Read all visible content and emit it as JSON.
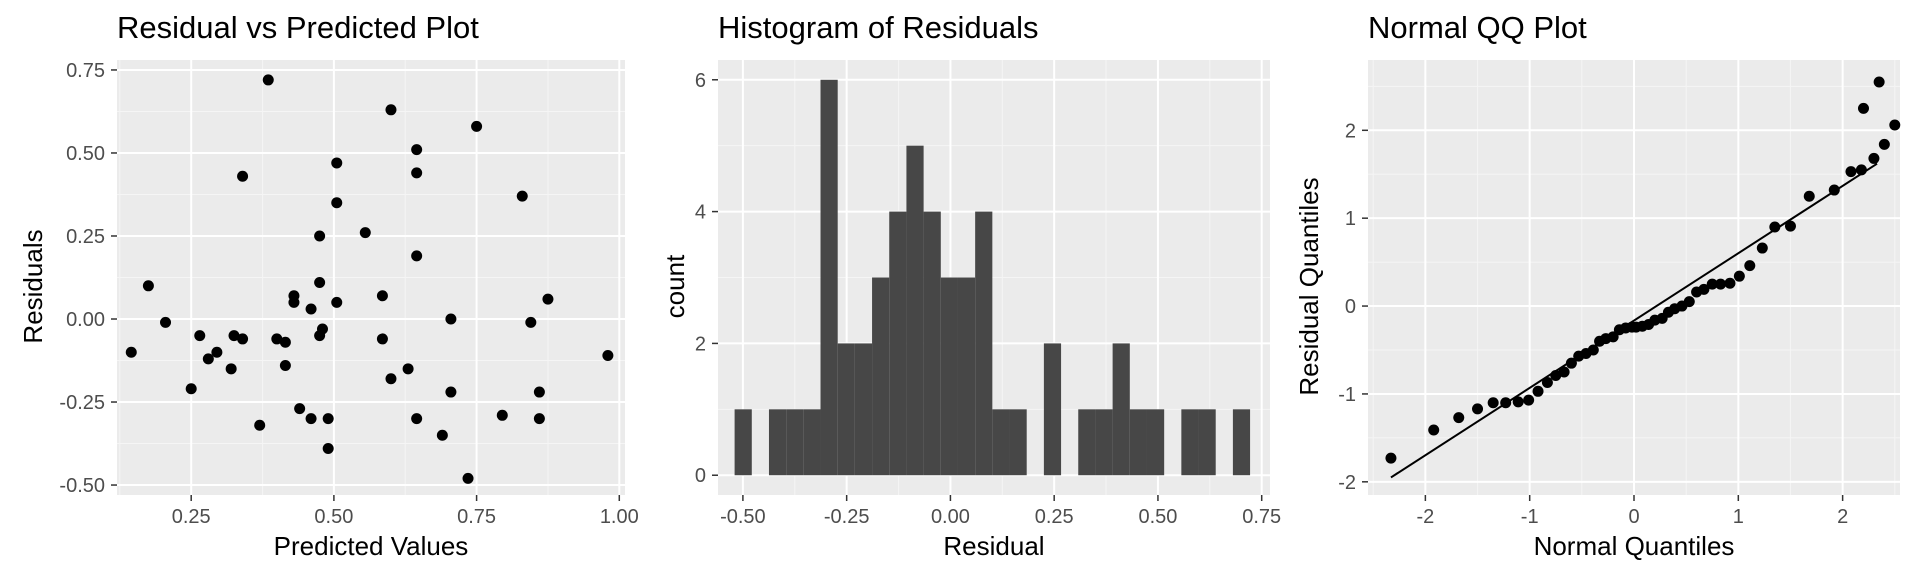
{
  "chart_data": [
    {
      "type": "scatter",
      "title": "Residual vs Predicted Plot",
      "xlabel": "Predicted Values",
      "ylabel": "Residuals",
      "xlim": [
        0.12,
        1.01
      ],
      "ylim": [
        -0.53,
        0.78
      ],
      "xticks": [
        0.25,
        0.5,
        0.75,
        1.0
      ],
      "xtick_labels": [
        "0.25",
        "0.50",
        "0.75",
        "1.00"
      ],
      "yticks": [
        -0.5,
        -0.25,
        0.0,
        0.25,
        0.5,
        0.75
      ],
      "ytick_labels": [
        "-0.50",
        "-0.25",
        "0.00",
        "0.25",
        "0.50",
        "0.75"
      ],
      "grid": true,
      "points": [
        [
          0.145,
          -0.1
        ],
        [
          0.175,
          0.1
        ],
        [
          0.205,
          -0.01
        ],
        [
          0.25,
          -0.21
        ],
        [
          0.265,
          -0.05
        ],
        [
          0.28,
          -0.12
        ],
        [
          0.295,
          -0.1
        ],
        [
          0.32,
          -0.15
        ],
        [
          0.325,
          -0.05
        ],
        [
          0.34,
          -0.06
        ],
        [
          0.34,
          0.43
        ],
        [
          0.37,
          -0.32
        ],
        [
          0.385,
          0.72
        ],
        [
          0.4,
          -0.06
        ],
        [
          0.415,
          -0.07
        ],
        [
          0.415,
          -0.14
        ],
        [
          0.43,
          0.07
        ],
        [
          0.43,
          0.05
        ],
        [
          0.44,
          -0.27
        ],
        [
          0.46,
          0.03
        ],
        [
          0.46,
          -0.3
        ],
        [
          0.475,
          0.25
        ],
        [
          0.475,
          0.11
        ],
        [
          0.475,
          -0.05
        ],
        [
          0.48,
          -0.03
        ],
        [
          0.49,
          -0.3
        ],
        [
          0.49,
          -0.39
        ],
        [
          0.505,
          0.47
        ],
        [
          0.505,
          0.35
        ],
        [
          0.505,
          0.05
        ],
        [
          0.555,
          0.26
        ],
        [
          0.585,
          0.07
        ],
        [
          0.585,
          -0.06
        ],
        [
          0.6,
          0.63
        ],
        [
          0.6,
          -0.18
        ],
        [
          0.63,
          -0.15
        ],
        [
          0.645,
          0.51
        ],
        [
          0.645,
          0.44
        ],
        [
          0.645,
          0.19
        ],
        [
          0.645,
          -0.3
        ],
        [
          0.69,
          -0.35
        ],
        [
          0.705,
          0.0
        ],
        [
          0.705,
          -0.22
        ],
        [
          0.735,
          -0.48
        ],
        [
          0.75,
          0.58
        ],
        [
          0.795,
          -0.29
        ],
        [
          0.83,
          0.37
        ],
        [
          0.845,
          -0.01
        ],
        [
          0.86,
          -0.22
        ],
        [
          0.86,
          -0.3
        ],
        [
          0.875,
          0.06
        ],
        [
          0.98,
          -0.11
        ]
      ]
    },
    {
      "type": "bar",
      "title": "Histogram of Residuals",
      "xlabel": "Residual",
      "ylabel": "count",
      "xlim": [
        -0.56,
        0.77
      ],
      "ylim": [
        -0.3,
        6.3
      ],
      "xticks": [
        -0.5,
        -0.25,
        0.0,
        0.25,
        0.5,
        0.75
      ],
      "xtick_labels": [
        "-0.50",
        "-0.25",
        "0.00",
        "0.25",
        "0.50",
        "0.75"
      ],
      "yticks": [
        0,
        2,
        4,
        6
      ],
      "ytick_labels": [
        "0",
        "2",
        "4",
        "6"
      ],
      "grid": true,
      "bins": 30,
      "bin_start": -0.52,
      "bin_width": 0.0414,
      "values": [
        1,
        0,
        1,
        1,
        1,
        6,
        2,
        2,
        3,
        4,
        5,
        4,
        3,
        3,
        4,
        1,
        1,
        0,
        2,
        0,
        1,
        1,
        2,
        1,
        1,
        0,
        1,
        1,
        0,
        1
      ]
    },
    {
      "type": "scatter",
      "title": "Normal QQ Plot",
      "xlabel": "Normal Quantiles",
      "ylabel": "Residual Quantiles",
      "xlim": [
        -2.55,
        2.55
      ],
      "ylim": [
        -2.15,
        2.8
      ],
      "xticks": [
        -2,
        -1,
        0,
        1,
        2
      ],
      "xtick_labels": [
        "-2",
        "-1",
        "0",
        "1",
        "2"
      ],
      "yticks": [
        -2,
        -1,
        0,
        1,
        2
      ],
      "ytick_labels": [
        "-2",
        "-1",
        "0",
        "1",
        "2"
      ],
      "grid": true,
      "reference_line": [
        [
          -2.33,
          -1.95
        ],
        [
          2.33,
          1.62
        ]
      ],
      "points": [
        [
          -2.33,
          -1.73
        ],
        [
          -1.92,
          -1.41
        ],
        [
          -1.68,
          -1.27
        ],
        [
          -1.5,
          -1.17
        ],
        [
          -1.35,
          -1.1
        ],
        [
          -1.23,
          -1.1
        ],
        [
          -1.11,
          -1.09
        ],
        [
          -1.01,
          -1.07
        ],
        [
          -0.92,
          -0.97
        ],
        [
          -0.83,
          -0.87
        ],
        [
          -0.75,
          -0.79
        ],
        [
          -0.67,
          -0.75
        ],
        [
          -0.6,
          -0.65
        ],
        [
          -0.53,
          -0.57
        ],
        [
          -0.46,
          -0.54
        ],
        [
          -0.39,
          -0.5
        ],
        [
          -0.33,
          -0.4
        ],
        [
          -0.27,
          -0.37
        ],
        [
          -0.2,
          -0.35
        ],
        [
          -0.14,
          -0.27
        ],
        [
          -0.08,
          -0.25
        ],
        [
          -0.02,
          -0.24
        ],
        [
          0.02,
          -0.24
        ],
        [
          0.08,
          -0.23
        ],
        [
          0.14,
          -0.21
        ],
        [
          0.2,
          -0.16
        ],
        [
          0.27,
          -0.14
        ],
        [
          0.33,
          -0.07
        ],
        [
          0.39,
          -0.03
        ],
        [
          0.46,
          0.0
        ],
        [
          0.53,
          0.05
        ],
        [
          0.6,
          0.16
        ],
        [
          0.67,
          0.19
        ],
        [
          0.75,
          0.25
        ],
        [
          0.83,
          0.25
        ],
        [
          0.92,
          0.26
        ],
        [
          1.01,
          0.34
        ],
        [
          1.11,
          0.46
        ],
        [
          1.23,
          0.66
        ],
        [
          1.35,
          0.9
        ],
        [
          1.5,
          0.91
        ],
        [
          1.68,
          1.25
        ],
        [
          1.92,
          1.32
        ],
        [
          2.08,
          1.53
        ],
        [
          2.18,
          1.55
        ],
        [
          2.3,
          1.68
        ],
        [
          2.4,
          1.84
        ],
        [
          2.5,
          2.06
        ],
        [
          2.35,
          2.55
        ],
        [
          2.2,
          2.25
        ]
      ]
    }
  ]
}
